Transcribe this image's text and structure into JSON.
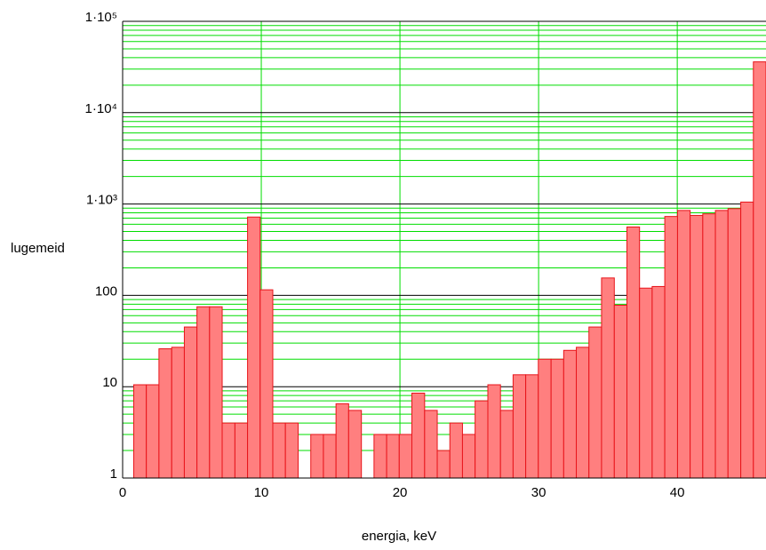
{
  "chart_data": {
    "type": "histogram",
    "x_label": "energia, keV",
    "y_label": "lugemeid",
    "log_y": true,
    "grid": true,
    "minor_grid": true,
    "color": "#ff7f7f",
    "edge_color": "#e8141a",
    "xlim": [
      0,
      46.4
    ],
    "ylim": [
      1,
      100000
    ],
    "xticks": [
      0,
      10,
      20,
      30,
      40
    ],
    "yticks": [
      1,
      10,
      100,
      {
        "value": 1000,
        "label": "1·10³"
      },
      {
        "value": 10000,
        "label": "1·10⁴"
      },
      {
        "value": 100000,
        "label": "1·10⁵"
      }
    ],
    "bins": [
      0.8,
      1.71,
      2.62,
      3.54,
      4.45,
      5.36,
      6.27,
      7.18,
      8.1,
      9.01,
      9.92,
      10.83,
      11.74,
      12.66,
      13.57,
      14.48,
      15.39,
      16.3,
      17.22,
      18.13,
      19.04,
      19.95,
      20.86,
      21.78,
      22.69,
      23.6,
      24.51,
      25.42,
      26.34,
      27.25,
      28.16,
      29.07,
      29.98,
      30.9,
      31.81,
      32.72,
      33.63,
      34.54,
      35.46,
      36.37,
      37.28,
      38.19,
      39.1,
      40.02,
      40.93,
      41.84,
      42.75,
      43.66,
      44.58,
      45.49,
      46.4
    ],
    "values": [
      10.5,
      10.5,
      26,
      27,
      45,
      75,
      75,
      4,
      4,
      720,
      115,
      4,
      4,
      null,
      3,
      3,
      6.5,
      5.5,
      null,
      3,
      3,
      3,
      8.5,
      5.5,
      2,
      4,
      3,
      7,
      10.5,
      5.5,
      13.5,
      13.5,
      20,
      20,
      25,
      27,
      45,
      155,
      78,
      560,
      120,
      125,
      730,
      850,
      750,
      780,
      850,
      890,
      1050,
      36000
    ]
  }
}
